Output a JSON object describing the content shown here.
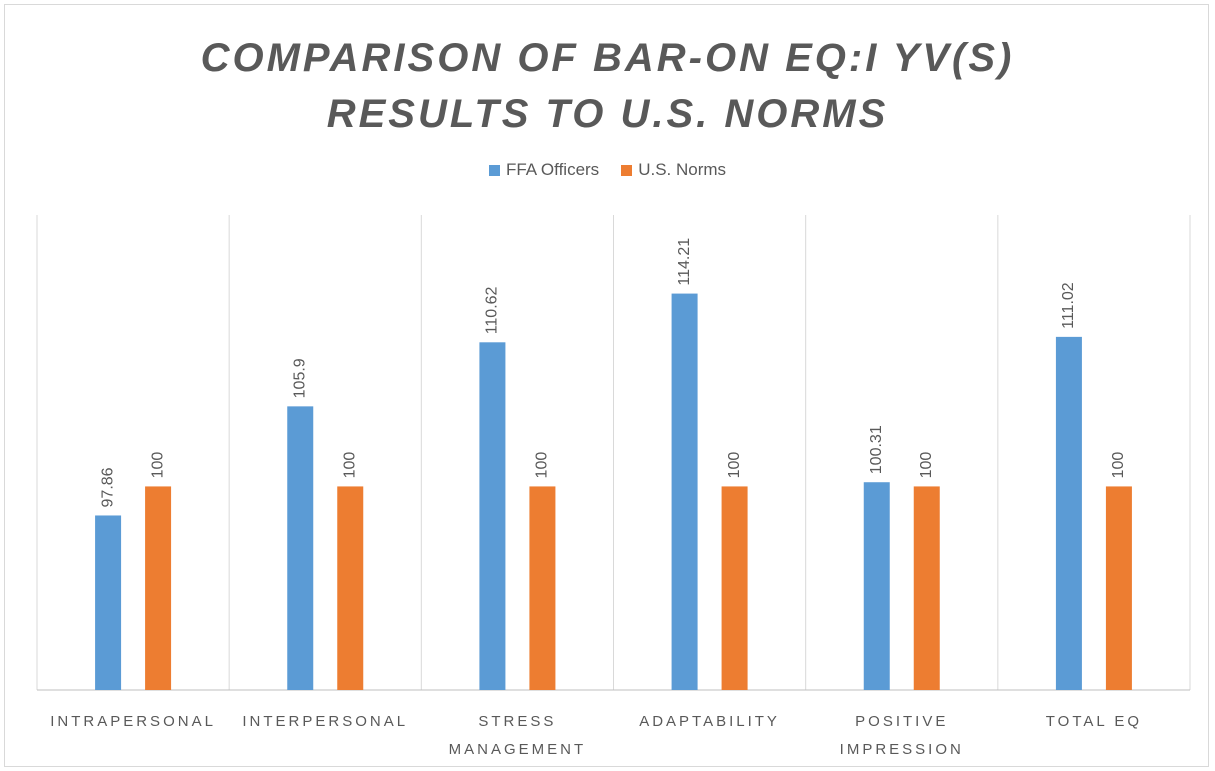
{
  "chart_data": {
    "type": "bar",
    "title": "COMPARISON OF BAR-ON EQ:I YV(S) RESULTS TO U.S. NORMS",
    "categories": [
      "INTRAPERSONAL",
      "INTERPERSONAL",
      "STRESS MANAGEMENT",
      "ADAPTABILITY",
      "POSITIVE IMPRESSION",
      "TOTAL EQ"
    ],
    "series": [
      {
        "name": "FFA Officers",
        "color": "#5b9bd5",
        "values": [
          97.86,
          105.9,
          110.62,
          114.21,
          100.31,
          111.02
        ]
      },
      {
        "name": "U.S. Norms",
        "color": "#ed7d31",
        "values": [
          100,
          100,
          100,
          100,
          100,
          100
        ]
      }
    ],
    "ylim": [
      85,
      120
    ],
    "legend": "top"
  }
}
